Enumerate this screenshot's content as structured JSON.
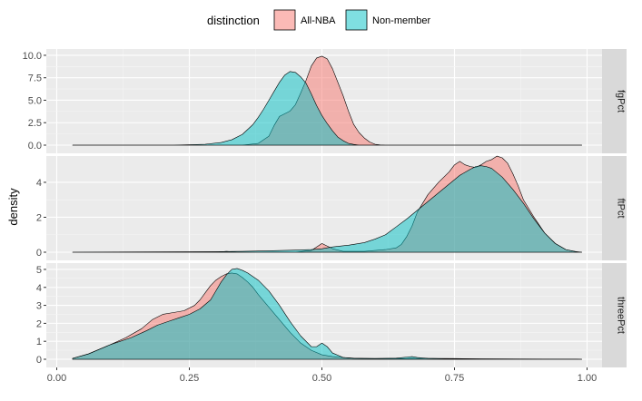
{
  "chart_data": {
    "type": "area",
    "xlabel": "",
    "ylabel": "density",
    "xlim": [
      0,
      1
    ],
    "x_ticks": [
      "0.00",
      "0.25",
      "0.50",
      "0.75",
      "1.00"
    ],
    "x_tick_values": [
      0,
      0.25,
      0.5,
      0.75,
      1.0
    ],
    "legend": {
      "title": "distinction",
      "position": "top",
      "entries": [
        {
          "name": "All-NBA",
          "color": "#F8766D"
        },
        {
          "name": "Non-member",
          "color": "#00BFC4"
        }
      ]
    },
    "panels": [
      {
        "strip": "fgPct",
        "ylim": [
          0,
          10.5
        ],
        "y_ticks": [
          "0.0",
          "2.5",
          "5.0",
          "7.5",
          "10.0"
        ],
        "y_tick_values": [
          0,
          2.5,
          5,
          7.5,
          10
        ],
        "series": [
          {
            "name": "All-NBA",
            "x": [
              0.03,
              0.35,
              0.38,
              0.4,
              0.41,
              0.42,
              0.43,
              0.44,
              0.45,
              0.46,
              0.47,
              0.48,
              0.49,
              0.5,
              0.51,
              0.52,
              0.53,
              0.54,
              0.55,
              0.56,
              0.57,
              0.58,
              0.59,
              0.6,
              0.61,
              0.62,
              0.99
            ],
            "y": [
              0,
              0,
              0.2,
              1.0,
              2.2,
              3.2,
              3.5,
              3.8,
              4.5,
              5.8,
              7.2,
              8.8,
              9.7,
              9.9,
              9.6,
              8.5,
              7.0,
              5.5,
              3.8,
              2.3,
              1.4,
              0.8,
              0.35,
              0.1,
              0.02,
              0,
              0
            ]
          },
          {
            "name": "Non-member",
            "x": [
              0.03,
              0.22,
              0.28,
              0.31,
              0.33,
              0.35,
              0.37,
              0.38,
              0.39,
              0.4,
              0.41,
              0.42,
              0.43,
              0.44,
              0.45,
              0.46,
              0.47,
              0.48,
              0.49,
              0.5,
              0.51,
              0.52,
              0.53,
              0.54,
              0.55,
              0.56,
              0.57,
              0.99
            ],
            "y": [
              0,
              0,
              0.1,
              0.3,
              0.6,
              1.2,
              2.3,
              3.1,
              4.0,
              5.0,
              6.0,
              7.0,
              7.8,
              8.2,
              8.1,
              7.6,
              6.9,
              5.7,
              4.4,
              3.3,
              2.4,
              1.6,
              0.9,
              0.5,
              0.2,
              0.08,
              0,
              0
            ]
          }
        ]
      },
      {
        "strip": "ftPct",
        "ylim": [
          0,
          5.4
        ],
        "y_ticks": [
          "0",
          "2",
          "4"
        ],
        "y_tick_values": [
          0,
          2,
          4
        ],
        "series": [
          {
            "name": "All-NBA",
            "x": [
              0.03,
              0.3,
              0.32,
              0.34,
              0.45,
              0.48,
              0.5,
              0.52,
              0.54,
              0.58,
              0.6,
              0.62,
              0.64,
              0.65,
              0.66,
              0.67,
              0.68,
              0.7,
              0.72,
              0.74,
              0.75,
              0.76,
              0.77,
              0.78,
              0.79,
              0.8,
              0.81,
              0.82,
              0.83,
              0.84,
              0.85,
              0.86,
              0.87,
              0.88,
              0.9,
              0.92,
              0.94,
              0.96,
              0.98,
              0.99
            ],
            "y": [
              0,
              0,
              0.05,
              0,
              0,
              0.1,
              0.5,
              0.2,
              0.05,
              0.05,
              0.1,
              0.15,
              0.25,
              0.45,
              0.9,
              1.5,
              2.3,
              3.3,
              4.0,
              4.6,
              5.0,
              5.2,
              5.0,
              4.9,
              4.85,
              5.0,
              5.2,
              5.3,
              5.5,
              5.4,
              5.1,
              4.5,
              3.8,
              3.0,
              2.0,
              1.1,
              0.5,
              0.15,
              0.02,
              0
            ]
          },
          {
            "name": "Non-member",
            "x": [
              0.03,
              0.3,
              0.35,
              0.4,
              0.45,
              0.48,
              0.5,
              0.52,
              0.55,
              0.58,
              0.6,
              0.62,
              0.64,
              0.66,
              0.68,
              0.7,
              0.72,
              0.74,
              0.76,
              0.78,
              0.79,
              0.8,
              0.81,
              0.82,
              0.84,
              0.86,
              0.88,
              0.9,
              0.92,
              0.94,
              0.96,
              0.98,
              0.99
            ],
            "y": [
              0,
              0.03,
              0.05,
              0.08,
              0.12,
              0.15,
              0.2,
              0.3,
              0.4,
              0.55,
              0.75,
              1.0,
              1.45,
              1.9,
              2.4,
              2.9,
              3.4,
              3.9,
              4.4,
              4.75,
              4.9,
              4.95,
              4.9,
              4.8,
              4.3,
              3.6,
              2.8,
              1.9,
              1.1,
              0.5,
              0.15,
              0.03,
              0
            ]
          }
        ]
      },
      {
        "strip": "threePct",
        "ylim": [
          0,
          5.25
        ],
        "y_ticks": [
          "0",
          "1",
          "2",
          "3",
          "4",
          "5"
        ],
        "y_tick_values": [
          0,
          1,
          2,
          3,
          4,
          5
        ],
        "series": [
          {
            "name": "All-NBA",
            "x": [
              0.03,
              0.06,
              0.1,
              0.13,
              0.16,
              0.18,
              0.2,
              0.22,
              0.24,
              0.26,
              0.27,
              0.28,
              0.29,
              0.3,
              0.31,
              0.32,
              0.33,
              0.34,
              0.35,
              0.36,
              0.37,
              0.38,
              0.4,
              0.42,
              0.44,
              0.46,
              0.48,
              0.5,
              0.52,
              0.54,
              0.56,
              0.6,
              0.65,
              0.7,
              0.75,
              0.8,
              0.99
            ],
            "y": [
              0.05,
              0.3,
              0.8,
              1.2,
              1.7,
              2.2,
              2.5,
              2.6,
              2.7,
              3.0,
              3.3,
              3.7,
              4.1,
              4.4,
              4.6,
              4.75,
              4.8,
              4.75,
              4.55,
              4.3,
              4.0,
              3.6,
              2.9,
              2.2,
              1.5,
              0.9,
              0.5,
              0.25,
              0.15,
              0.1,
              0.06,
              0.04,
              0.04,
              0.05,
              0.04,
              0.02,
              0
            ]
          },
          {
            "name": "Non-member",
            "x": [
              0.03,
              0.06,
              0.1,
              0.14,
              0.17,
              0.19,
              0.21,
              0.23,
              0.25,
              0.27,
              0.29,
              0.3,
              0.31,
              0.32,
              0.33,
              0.34,
              0.35,
              0.36,
              0.37,
              0.38,
              0.4,
              0.42,
              0.44,
              0.46,
              0.48,
              0.49,
              0.5,
              0.51,
              0.52,
              0.54,
              0.56,
              0.6,
              0.64,
              0.66,
              0.67,
              0.68,
              0.7,
              0.74,
              0.99
            ],
            "y": [
              0.05,
              0.3,
              0.8,
              1.2,
              1.6,
              1.9,
              2.1,
              2.3,
              2.5,
              2.8,
              3.3,
              3.8,
              4.3,
              4.7,
              5.0,
              5.05,
              4.95,
              4.8,
              4.6,
              4.4,
              3.8,
              3.0,
              2.1,
              1.3,
              0.7,
              0.7,
              0.9,
              0.7,
              0.35,
              0.1,
              0.05,
              0.04,
              0.06,
              0.12,
              0.15,
              0.1,
              0.05,
              0.02,
              0
            ]
          }
        ]
      }
    ]
  }
}
